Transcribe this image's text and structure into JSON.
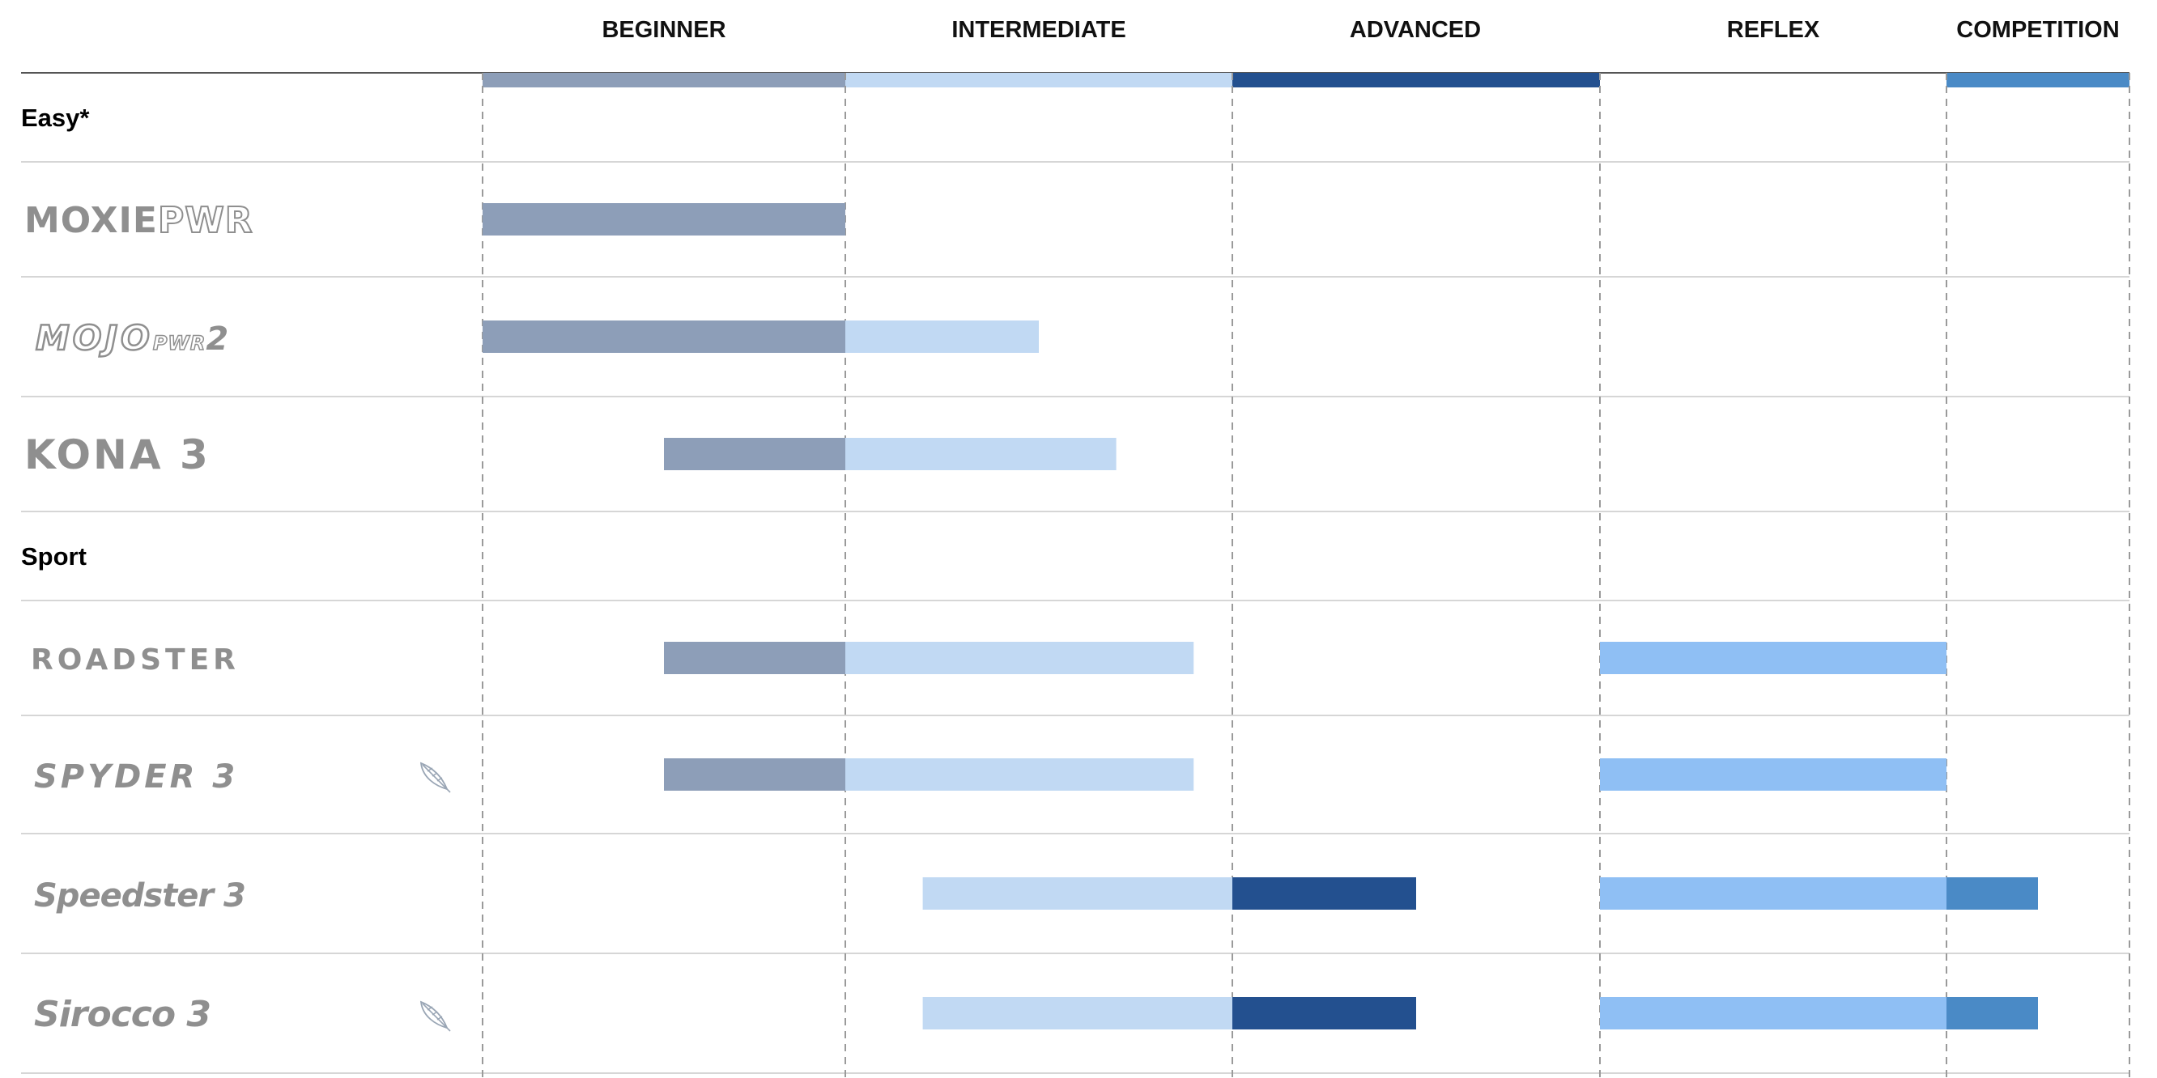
{
  "chart_data": {
    "type": "bar",
    "columns": [
      "BEGINNER",
      "INTERMEDIATE",
      "ADVANCED",
      "REFLEX",
      "COMPETITION"
    ],
    "column_colors": {
      "BEGINNER": "#8d9eb8",
      "INTERMEDIATE": "#c1d9f3",
      "ADVANCED": "#23508f",
      "REFLEX": "#8fbff4",
      "COMPETITION": "#4a8ac6"
    },
    "rows": [
      {
        "kind": "section",
        "label": "Easy*"
      },
      {
        "kind": "product",
        "logo": "MOXIEPWR",
        "feather": false,
        "ranges": [
          {
            "column": "BEGINNER",
            "start": 0,
            "end": 1
          }
        ]
      },
      {
        "kind": "product",
        "logo": "MOJO PWR 2",
        "feather": false,
        "ranges": [
          {
            "column": "BEGINNER",
            "start": 0,
            "end": 1
          },
          {
            "column": "INTERMEDIATE",
            "start": 0,
            "end": 0.5
          }
        ]
      },
      {
        "kind": "product",
        "logo": "KONA 3",
        "feather": false,
        "ranges": [
          {
            "column": "BEGINNER",
            "start": 0.5,
            "end": 1
          },
          {
            "column": "INTERMEDIATE",
            "start": 0,
            "end": 0.7
          }
        ]
      },
      {
        "kind": "section",
        "label": "Sport"
      },
      {
        "kind": "product",
        "logo": "ROADSTER",
        "feather": false,
        "ranges": [
          {
            "column": "BEGINNER",
            "start": 0.5,
            "end": 1
          },
          {
            "column": "INTERMEDIATE",
            "start": 0,
            "end": 0.9
          },
          {
            "column": "REFLEX",
            "start": 0,
            "end": 1
          }
        ]
      },
      {
        "kind": "product",
        "logo": "SPYDER 3",
        "feather": true,
        "ranges": [
          {
            "column": "BEGINNER",
            "start": 0.5,
            "end": 1
          },
          {
            "column": "INTERMEDIATE",
            "start": 0,
            "end": 0.9
          },
          {
            "column": "REFLEX",
            "start": 0,
            "end": 1
          }
        ]
      },
      {
        "kind": "product",
        "logo": "Speedster 3",
        "feather": false,
        "ranges": [
          {
            "column": "INTERMEDIATE",
            "start": 0.2,
            "end": 1
          },
          {
            "column": "ADVANCED",
            "start": 0,
            "end": 0.5
          },
          {
            "column": "REFLEX",
            "start": 0,
            "end": 1
          },
          {
            "column": "COMPETITION",
            "start": 0,
            "end": 0.5
          }
        ]
      },
      {
        "kind": "product",
        "logo": "Sirocco 3",
        "feather": true,
        "ranges": [
          {
            "column": "INTERMEDIATE",
            "start": 0.2,
            "end": 1
          },
          {
            "column": "ADVANCED",
            "start": 0,
            "end": 0.5
          },
          {
            "column": "REFLEX",
            "start": 0,
            "end": 1
          },
          {
            "column": "COMPETITION",
            "start": 0,
            "end": 0.5
          }
        ]
      }
    ],
    "header_band": "full-width colored strip under headers for BEGINNER, INTERMEDIATE, ADVANCED, COMPETITION",
    "grid": true,
    "icons": {
      "feather": "feather-icon"
    },
    "colors": {
      "grid_line": "#d6d6d6",
      "divider_dashed": "#9a9a9a",
      "logo_gray": "#8f8f8f"
    }
  }
}
